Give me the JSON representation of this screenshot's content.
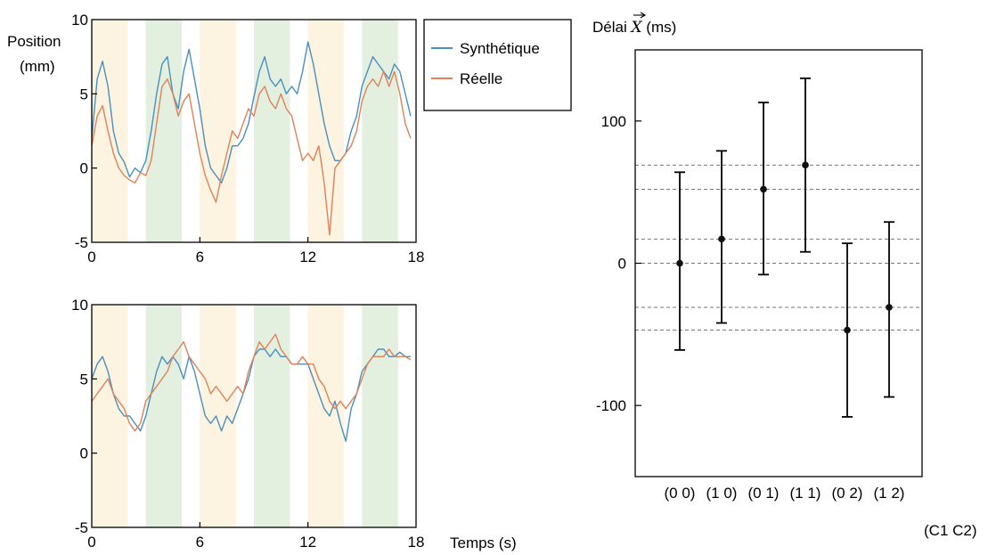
{
  "chart_data": [
    {
      "type": "line",
      "ylabel": "Position (mm)",
      "xlabel": "",
      "xlim": [
        0,
        18
      ],
      "ylim": [
        -5,
        10
      ],
      "x_ticks": [
        "0",
        "6",
        "12",
        "18"
      ],
      "y_ticks": [
        "10",
        "5",
        "0",
        "-5"
      ],
      "legend": {
        "position": "right",
        "entries": [
          "Synthétique",
          "Réelle"
        ]
      },
      "bands": [
        {
          "start": 0,
          "end": 2,
          "color": "#fdf3e1"
        },
        {
          "start": 3,
          "end": 5,
          "color": "#e4f0df"
        },
        {
          "start": 6,
          "end": 8,
          "color": "#fdf3e1"
        },
        {
          "start": 9,
          "end": 11,
          "color": "#e4f0df"
        },
        {
          "start": 12,
          "end": 14,
          "color": "#fdf3e1"
        },
        {
          "start": 15,
          "end": 17,
          "color": "#e4f0df"
        }
      ],
      "series": [
        {
          "name": "Synthétique",
          "color": "#4a8fbf",
          "x": [
            0,
            0.3,
            0.6,
            0.9,
            1.2,
            1.5,
            1.8,
            2.1,
            2.4,
            2.7,
            3.0,
            3.3,
            3.6,
            3.9,
            4.2,
            4.5,
            4.8,
            5.1,
            5.4,
            5.7,
            6.0,
            6.3,
            6.6,
            6.9,
            7.2,
            7.5,
            7.8,
            8.1,
            8.4,
            8.7,
            9.0,
            9.3,
            9.6,
            9.9,
            10.2,
            10.5,
            10.8,
            11.1,
            11.4,
            11.7,
            12.0,
            12.3,
            12.6,
            12.9,
            13.2,
            13.5,
            13.8,
            14.1,
            14.4,
            14.7,
            15.0,
            15.3,
            15.6,
            15.9,
            16.2,
            16.5,
            16.8,
            17.1,
            17.4,
            17.7
          ],
          "y": [
            2.0,
            6.0,
            7.2,
            5.5,
            2.5,
            1.0,
            0.4,
            -0.6,
            0.0,
            -0.3,
            0.5,
            2.5,
            5.0,
            7.0,
            7.5,
            5.0,
            4.0,
            6.5,
            8.0,
            6.0,
            4.0,
            1.5,
            0.0,
            -0.5,
            -1.0,
            0.0,
            1.5,
            1.5,
            2.0,
            3.0,
            4.8,
            6.5,
            7.5,
            6.0,
            5.5,
            6.0,
            5.0,
            5.5,
            5.0,
            6.5,
            8.5,
            7.0,
            5.0,
            3.0,
            1.5,
            0.5,
            0.5,
            1.0,
            2.5,
            3.5,
            5.5,
            6.5,
            7.5,
            7.0,
            6.5,
            6.0,
            7.0,
            6.5,
            5.0,
            3.5
          ]
        },
        {
          "name": "Réelle",
          "color": "#e08158",
          "x": [
            0,
            0.3,
            0.6,
            0.9,
            1.2,
            1.5,
            1.8,
            2.1,
            2.4,
            2.7,
            3.0,
            3.3,
            3.6,
            3.9,
            4.2,
            4.5,
            4.8,
            5.1,
            5.4,
            5.7,
            6.0,
            6.3,
            6.6,
            6.9,
            7.2,
            7.5,
            7.8,
            8.1,
            8.4,
            8.7,
            9.0,
            9.3,
            9.6,
            9.9,
            10.2,
            10.5,
            10.8,
            11.1,
            11.4,
            11.7,
            12.0,
            12.3,
            12.6,
            12.9,
            13.2,
            13.5,
            13.8,
            14.1,
            14.4,
            14.7,
            15.0,
            15.3,
            15.6,
            15.9,
            16.2,
            16.5,
            16.8,
            17.1,
            17.4,
            17.7
          ],
          "y": [
            1.5,
            3.5,
            4.2,
            2.5,
            1.0,
            0.0,
            -0.5,
            -0.8,
            -1.0,
            -0.3,
            -0.5,
            0.5,
            3.0,
            5.5,
            6.0,
            5.0,
            3.5,
            4.5,
            5.0,
            3.0,
            1.0,
            -0.5,
            -1.5,
            -2.3,
            -0.5,
            1.0,
            2.5,
            2.0,
            3.0,
            4.0,
            3.5,
            5.0,
            5.5,
            4.5,
            4.0,
            5.0,
            4.0,
            3.5,
            2.0,
            0.5,
            1.0,
            0.5,
            1.5,
            -1.0,
            -4.5,
            0.0,
            0.5,
            1.0,
            1.5,
            2.5,
            4.5,
            5.5,
            6.0,
            5.5,
            6.5,
            5.5,
            6.5,
            5.0,
            3.0,
            2.0
          ]
        }
      ]
    },
    {
      "type": "line",
      "ylabel": "",
      "xlabel": "Temps (s)",
      "xlim": [
        0,
        18
      ],
      "ylim": [
        -5,
        10
      ],
      "x_ticks": [
        "0",
        "6",
        "12",
        "18"
      ],
      "y_ticks": [
        "10",
        "5",
        "0",
        "-5"
      ],
      "bands": [
        {
          "start": 0,
          "end": 2,
          "color": "#fdf3e1"
        },
        {
          "start": 3,
          "end": 5,
          "color": "#e4f0df"
        },
        {
          "start": 6,
          "end": 8,
          "color": "#fdf3e1"
        },
        {
          "start": 9,
          "end": 11,
          "color": "#e4f0df"
        },
        {
          "start": 12,
          "end": 14,
          "color": "#fdf3e1"
        },
        {
          "start": 15,
          "end": 17,
          "color": "#e4f0df"
        }
      ],
      "series": [
        {
          "color": "#4a8fbf",
          "x": [
            0,
            0.3,
            0.6,
            0.9,
            1.2,
            1.5,
            1.8,
            2.1,
            2.4,
            2.7,
            3.0,
            3.3,
            3.6,
            3.9,
            4.2,
            4.5,
            4.8,
            5.1,
            5.4,
            5.7,
            6.0,
            6.3,
            6.6,
            6.9,
            7.2,
            7.5,
            7.8,
            8.1,
            8.4,
            8.7,
            9.0,
            9.3,
            9.6,
            9.9,
            10.2,
            10.5,
            10.8,
            11.1,
            11.4,
            11.7,
            12.0,
            12.3,
            12.6,
            12.9,
            13.2,
            13.5,
            13.8,
            14.1,
            14.4,
            14.7,
            15.0,
            15.3,
            15.6,
            15.9,
            16.2,
            16.5,
            16.8,
            17.1,
            17.4,
            17.7
          ],
          "y": [
            5.0,
            6.0,
            6.5,
            5.5,
            4.0,
            3.0,
            2.5,
            2.5,
            2.0,
            1.5,
            2.5,
            4.0,
            5.5,
            6.5,
            6.0,
            6.5,
            6.0,
            5.0,
            6.5,
            5.5,
            4.0,
            2.5,
            2.0,
            2.5,
            1.5,
            2.5,
            2.0,
            3.0,
            4.0,
            5.0,
            6.5,
            7.0,
            7.0,
            6.5,
            7.0,
            6.5,
            6.5,
            6.0,
            6.0,
            6.0,
            6.0,
            5.0,
            4.0,
            3.0,
            2.5,
            3.5,
            2.0,
            0.8,
            3.0,
            4.0,
            5.5,
            6.0,
            6.5,
            7.0,
            7.0,
            6.5,
            6.5,
            6.8,
            6.5,
            6.5
          ]
        },
        {
          "color": "#e08158",
          "x": [
            0,
            0.3,
            0.6,
            0.9,
            1.2,
            1.5,
            1.8,
            2.1,
            2.4,
            2.7,
            3.0,
            3.3,
            3.6,
            3.9,
            4.2,
            4.5,
            4.8,
            5.1,
            5.4,
            5.7,
            6.0,
            6.3,
            6.6,
            6.9,
            7.2,
            7.5,
            7.8,
            8.1,
            8.4,
            8.7,
            9.0,
            9.3,
            9.6,
            9.9,
            10.2,
            10.5,
            10.8,
            11.1,
            11.4,
            11.7,
            12.0,
            12.3,
            12.6,
            12.9,
            13.2,
            13.5,
            13.8,
            14.1,
            14.4,
            14.7,
            15.0,
            15.3,
            15.6,
            15.9,
            16.2,
            16.5,
            16.8,
            17.1,
            17.4,
            17.7
          ],
          "y": [
            3.5,
            4.0,
            4.5,
            5.0,
            4.0,
            3.5,
            3.0,
            2.0,
            1.5,
            2.0,
            3.5,
            4.0,
            4.5,
            5.0,
            5.5,
            6.5,
            7.0,
            7.5,
            6.5,
            6.0,
            5.5,
            5.0,
            4.0,
            4.5,
            4.0,
            3.5,
            4.0,
            4.5,
            4.0,
            5.5,
            6.5,
            7.5,
            7.0,
            7.5,
            8.0,
            7.0,
            6.5,
            6.0,
            6.0,
            6.5,
            6.0,
            6.0,
            5.0,
            4.5,
            3.5,
            3.0,
            3.5,
            3.0,
            3.5,
            4.0,
            5.0,
            6.0,
            6.5,
            6.5,
            6.5,
            7.0,
            6.5,
            6.5,
            6.5,
            6.3
          ]
        }
      ]
    },
    {
      "type": "scatter",
      "ylabel": "Délai X (ms)",
      "xlabel": "(C1 C2)",
      "categories": [
        "(0 0)",
        "(1 0)",
        "(0 1)",
        "(1 1)",
        "(0 2)",
        "(1 2)"
      ],
      "values": [
        0,
        17,
        52,
        69,
        -47,
        -31
      ],
      "error_low": [
        -61,
        -42,
        -8,
        8,
        -108,
        -94
      ],
      "error_high": [
        64,
        79,
        113,
        130,
        14,
        29
      ],
      "ylim": [
        -150,
        150
      ],
      "y_ticks": [
        100,
        0,
        -100
      ],
      "y_tick_labels": [
        "100",
        "0",
        "-100"
      ],
      "reference_lines": [
        69,
        52,
        17,
        0,
        -31,
        -47
      ]
    }
  ]
}
